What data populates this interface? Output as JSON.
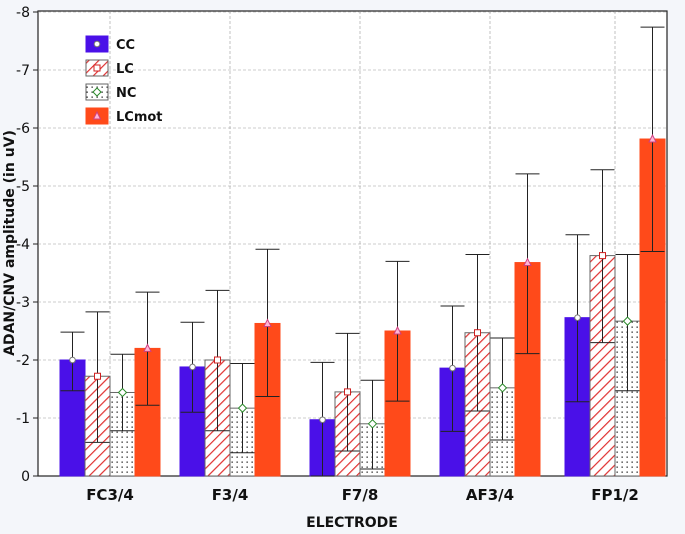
{
  "chart_data": {
    "type": "bar",
    "ylabel": "ADAN/CNV amplitude (in uV)",
    "xlabel": "ELECTRODE",
    "ylim": [
      0,
      -8
    ],
    "yticks": [
      0,
      -1,
      -2,
      -3,
      -4,
      -5,
      -6,
      -7,
      -8
    ],
    "ytick_labels": [
      "0",
      "-1",
      "-2",
      "-3",
      "-4",
      "-5",
      "-6",
      "-7",
      "-8"
    ],
    "grid": true,
    "legend_position": "top-left",
    "categories": [
      "FC3/4",
      "F3/4",
      "F7/8",
      "AF3/4",
      "FP1/2"
    ],
    "series": [
      {
        "name": "CC",
        "color": "#4a10e8",
        "pattern": "solid",
        "marker": "circle",
        "values": [
          -2.0,
          -1.88,
          -0.97,
          -1.86,
          -2.73
        ],
        "err_low": [
          -1.47,
          -1.1,
          0.0,
          -0.77,
          -1.28
        ],
        "err_high": [
          -2.48,
          -2.65,
          -1.96,
          -2.93,
          -4.16
        ]
      },
      {
        "name": "LC",
        "color": "#e03030",
        "pattern": "hatch",
        "marker": "square",
        "values": [
          -1.72,
          -2.0,
          -1.45,
          -2.47,
          -3.8
        ],
        "err_low": [
          -0.58,
          -0.78,
          -0.43,
          -1.12,
          -2.3
        ],
        "err_high": [
          -2.83,
          -3.2,
          -2.46,
          -3.82,
          -5.28
        ]
      },
      {
        "name": "NC",
        "color": "#ffffff",
        "pattern": "dotted",
        "marker": "diamond",
        "values": [
          -1.44,
          -1.17,
          -0.9,
          -1.52,
          -2.67
        ],
        "err_low": [
          -0.78,
          -0.4,
          -0.12,
          -0.62,
          -1.47
        ],
        "err_high": [
          -2.1,
          -1.94,
          -1.65,
          -2.38,
          -3.82
        ]
      },
      {
        "name": "LCmot",
        "color": "#ff4a1a",
        "pattern": "solid",
        "marker": "triangle",
        "values": [
          -2.2,
          -2.63,
          -2.5,
          -3.68,
          -5.81
        ],
        "err_low": [
          -1.22,
          -1.37,
          -1.29,
          -2.11,
          -3.87
        ],
        "err_high": [
          -3.17,
          -3.91,
          -3.7,
          -5.21,
          -7.74
        ]
      }
    ]
  }
}
